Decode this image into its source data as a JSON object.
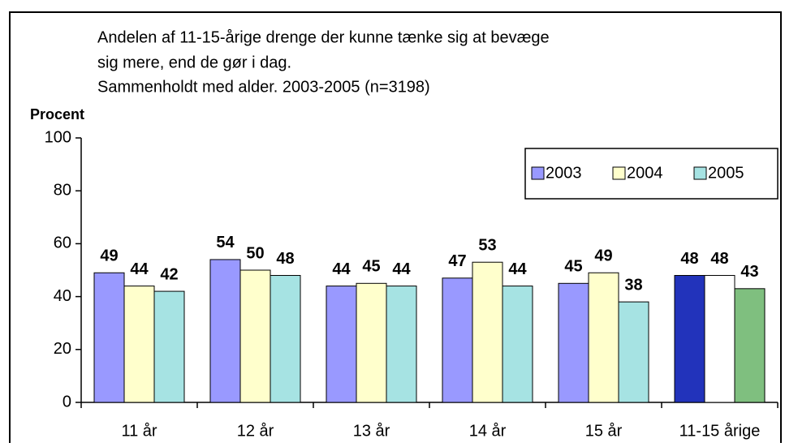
{
  "chart_data": {
    "type": "bar",
    "title": [
      "Andelen af 11-15-årige drenge der kunne tænke sig at bevæge",
      "sig mere, end de gør i dag.",
      "Sammenholdt med alder. 2003-2005 (n=3198)"
    ],
    "y_label": "Procent",
    "categories": [
      "11 år",
      "12 år",
      "13 år",
      "14 år",
      "15 år",
      "11-15 årige"
    ],
    "series": [
      {
        "name": "2003",
        "color": "#9999ff",
        "colors": [
          "#9999ff",
          "#9999ff",
          "#9999ff",
          "#9999ff",
          "#9999ff",
          "#2233bb"
        ],
        "values": [
          49,
          54,
          44,
          47,
          45,
          48
        ]
      },
      {
        "name": "2004",
        "color": "#ffffcc",
        "colors": [
          "#ffffcc",
          "#ffffcc",
          "#ffffcc",
          "#ffffcc",
          "#ffffcc",
          "#ffffff"
        ],
        "values": [
          44,
          50,
          45,
          53,
          49,
          48
        ]
      },
      {
        "name": "2005",
        "color": "#a6e3e3",
        "colors": [
          "#a6e3e3",
          "#a6e3e3",
          "#a6e3e3",
          "#a6e3e3",
          "#a6e3e3",
          "#7fbf7f"
        ],
        "values": [
          42,
          48,
          44,
          44,
          38,
          43
        ]
      }
    ],
    "ylim": [
      0,
      100
    ],
    "yticks": [
      0,
      20,
      40,
      60,
      80,
      100
    ],
    "legend": "upper right"
  }
}
